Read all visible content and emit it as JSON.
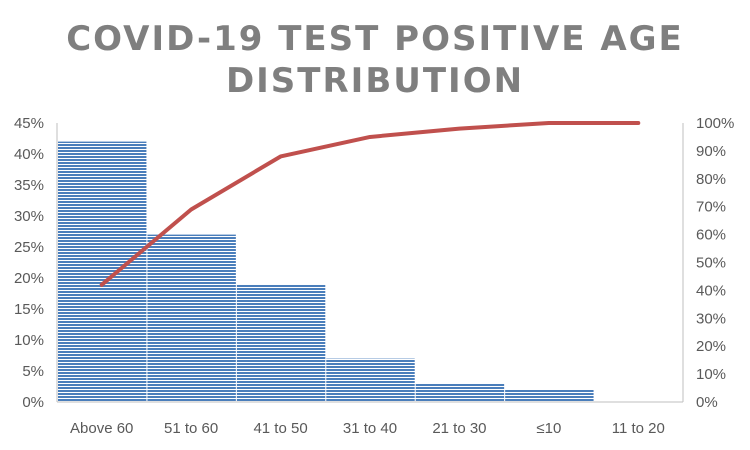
{
  "chart_data": {
    "type": "bar",
    "title_lines": [
      "COVID-19 TEST POSITIVE AGE",
      "DISTRIBUTION"
    ],
    "categories": [
      "Above 60",
      "51 to 60",
      "41 to 50",
      "31 to 40",
      "21 to 30",
      "≤10",
      "11 to 20"
    ],
    "series": [
      {
        "type": "bar",
        "axis": "left",
        "values": [
          42,
          27,
          19,
          7,
          3,
          2,
          0
        ]
      },
      {
        "type": "line",
        "axis": "right",
        "values": [
          42,
          69,
          88,
          95,
          98,
          100,
          100
        ]
      }
    ],
    "y_left": {
      "min": 0,
      "max": 45,
      "step": 5,
      "ticks": [
        "0%",
        "5%",
        "10%",
        "15%",
        "20%",
        "25%",
        "30%",
        "35%",
        "40%",
        "45%"
      ]
    },
    "y_right": {
      "min": 0,
      "max": 100,
      "step": 10,
      "ticks": [
        "0%",
        "10%",
        "20%",
        "30%",
        "40%",
        "50%",
        "60%",
        "70%",
        "80%",
        "90%",
        "100%"
      ]
    },
    "grid": false,
    "legend": "none",
    "colors": {
      "bar": "#4a7ebb",
      "bar_stripe": "#ffffff",
      "line": "#c0504d",
      "axis": "#bfbfbf",
      "text": "#595959",
      "title": "#7f7f7f"
    }
  }
}
